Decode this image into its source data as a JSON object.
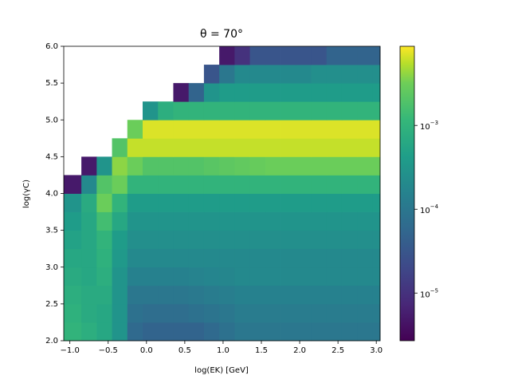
{
  "chart_data": {
    "type": "heatmap",
    "title": "θ = 70°",
    "x_label": "log(EK) [GeV]",
    "y_label": "log(γC)",
    "colormap": "viridis",
    "zscale": "log",
    "xlim": [
      -1.08,
      3.05
    ],
    "ylim": [
      2.0,
      6.0
    ],
    "zlim": [
      2.7e-06,
      0.0088
    ],
    "xticks": [
      {
        "value": -1.0,
        "label": "−1.0"
      },
      {
        "value": -0.5,
        "label": "−0.5"
      },
      {
        "value": 0.0,
        "label": "0.0"
      },
      {
        "value": 0.5,
        "label": "0.5"
      },
      {
        "value": 1.0,
        "label": "1.0"
      },
      {
        "value": 1.5,
        "label": "1.5"
      },
      {
        "value": 2.0,
        "label": "2.0"
      },
      {
        "value": 2.5,
        "label": "2.5"
      },
      {
        "value": 3.0,
        "label": "3.0"
      }
    ],
    "yticks": [
      {
        "value": 2.0,
        "label": "2.0"
      },
      {
        "value": 2.5,
        "label": "2.5"
      },
      {
        "value": 3.0,
        "label": "3.0"
      },
      {
        "value": 3.5,
        "label": "3.5"
      },
      {
        "value": 4.0,
        "label": "4.0"
      },
      {
        "value": 4.5,
        "label": "4.5"
      },
      {
        "value": 5.0,
        "label": "5.0"
      },
      {
        "value": 5.5,
        "label": "5.5"
      },
      {
        "value": 6.0,
        "label": "6.0"
      }
    ],
    "zticks": [
      {
        "value": 1e-05,
        "label": "10−5"
      },
      {
        "value": 0.0001,
        "label": "10−4"
      },
      {
        "value": 0.001,
        "label": "10−3"
      }
    ],
    "xbins": [
      -1.08,
      -0.85,
      -0.65,
      -0.45,
      -0.25,
      -0.05,
      0.15,
      0.35,
      0.55,
      0.75,
      0.95,
      1.15,
      1.35,
      1.55,
      1.75,
      1.95,
      2.15,
      2.35,
      2.55,
      2.75,
      2.95,
      3.05
    ],
    "ybins": [
      2.0,
      2.25,
      2.5,
      2.75,
      3.0,
      3.25,
      3.5,
      3.75,
      4.0,
      4.25,
      4.5,
      4.75,
      5.0,
      5.25,
      5.5,
      5.75,
      6.0
    ],
    "z": [
      [
        0.001,
        0.0008,
        0.0006,
        0.0003,
        6e-05,
        5e-05,
        5e-05,
        5e-05,
        5e-05,
        6e-05,
        8e-05,
        0.0001,
        0.0001,
        0.0001,
        0.0001,
        0.0001,
        0.0001,
        0.0001,
        0.0001,
        0.0001,
        0.0001
      ],
      [
        0.0009,
        0.0007,
        0.0006,
        0.0003,
        8e-05,
        7e-05,
        7e-05,
        7e-05,
        8e-05,
        9e-05,
        0.0001,
        0.00012,
        0.00012,
        0.00012,
        0.00012,
        0.00012,
        0.00012,
        0.00012,
        0.00012,
        0.00012,
        0.00012
      ],
      [
        0.0008,
        0.0007,
        0.0007,
        0.0003,
        0.0001,
        0.0001,
        0.0001,
        0.0001,
        0.00011,
        0.00012,
        0.00013,
        0.00015,
        0.00015,
        0.00015,
        0.00015,
        0.00015,
        0.00015,
        0.00015,
        0.00015,
        0.00015,
        0.00015
      ],
      [
        0.0007,
        0.0006,
        0.0008,
        0.0003,
        0.00015,
        0.00015,
        0.00015,
        0.00015,
        0.00016,
        0.00017,
        0.00018,
        0.0002,
        0.0002,
        0.0002,
        0.0002,
        0.0002,
        0.0002,
        0.0002,
        0.0002,
        0.0002,
        0.0002
      ],
      [
        0.0006,
        0.0006,
        0.0009,
        0.00035,
        0.0002,
        0.0002,
        0.0002,
        0.0002,
        0.0002,
        0.0002,
        0.0002,
        0.0002,
        0.0002,
        0.0002,
        0.0002,
        0.0002,
        0.0002,
        0.0002,
        0.0002,
        0.0002,
        0.0002
      ],
      [
        0.0005,
        0.0006,
        0.001,
        0.0004,
        0.00025,
        0.00025,
        0.00025,
        0.00025,
        0.00025,
        0.00025,
        0.00025,
        0.00025,
        0.00025,
        0.00025,
        0.00025,
        0.00025,
        0.00025,
        0.00025,
        0.00025,
        0.00025,
        0.00025
      ],
      [
        0.0004,
        0.0006,
        0.0015,
        0.0006,
        0.0003,
        0.0003,
        0.0003,
        0.0003,
        0.0003,
        0.0003,
        0.0003,
        0.0003,
        0.0003,
        0.0003,
        0.0003,
        0.0003,
        0.0003,
        0.0003,
        0.0003,
        0.0003,
        0.0003
      ],
      [
        0.0003,
        0.0007,
        0.003,
        0.001,
        0.0004,
        0.0004,
        0.0004,
        0.0004,
        0.0004,
        0.0004,
        0.0004,
        0.0004,
        0.0004,
        0.0004,
        0.0004,
        0.0004,
        0.0004,
        0.0004,
        0.0004,
        0.0004,
        0.0004
      ],
      [
        5e-06,
        0.0002,
        0.002,
        0.003,
        0.001,
        0.001,
        0.001,
        0.001,
        0.001,
        0.001,
        0.001,
        0.001,
        0.001,
        0.001,
        0.001,
        0.001,
        0.001,
        0.001,
        0.001,
        0.001,
        0.001
      ],
      [
        null,
        5e-06,
        0.0003,
        0.004,
        0.003,
        0.002,
        0.002,
        0.002,
        0.002,
        0.0022,
        0.0024,
        0.0026,
        0.0028,
        0.003,
        0.003,
        0.003,
        0.003,
        0.003,
        0.003,
        0.003,
        0.003
      ],
      [
        null,
        null,
        null,
        0.002,
        0.006,
        0.006,
        0.006,
        0.006,
        0.006,
        0.006,
        0.006,
        0.006,
        0.006,
        0.006,
        0.006,
        0.006,
        0.006,
        0.006,
        0.006,
        0.006,
        0.006
      ],
      [
        null,
        null,
        null,
        null,
        0.003,
        0.007,
        0.007,
        0.007,
        0.007,
        0.007,
        0.007,
        0.007,
        0.007,
        0.007,
        0.007,
        0.007,
        0.007,
        0.007,
        0.007,
        0.007,
        0.007
      ],
      [
        null,
        null,
        null,
        null,
        null,
        0.0003,
        0.0008,
        0.001,
        0.001,
        0.001,
        0.001,
        0.001,
        0.001,
        0.001,
        0.001,
        0.001,
        0.001,
        0.001,
        0.001,
        0.001,
        0.001
      ],
      [
        null,
        null,
        null,
        null,
        null,
        null,
        null,
        5e-06,
        5e-05,
        0.0003,
        0.0004,
        0.0004,
        0.0004,
        0.0004,
        0.0004,
        0.0004,
        0.0004,
        0.0004,
        0.0004,
        0.0004,
        0.0004
      ],
      [
        null,
        null,
        null,
        null,
        null,
        null,
        null,
        null,
        null,
        3e-05,
        0.0001,
        0.0002,
        0.0002,
        0.0002,
        0.0002,
        0.0002,
        0.00025,
        0.00025,
        0.00025,
        0.00025,
        0.00025
      ],
      [
        null,
        null,
        null,
        null,
        null,
        null,
        null,
        null,
        null,
        null,
        5e-06,
        1e-05,
        3e-05,
        3e-05,
        3e-05,
        3e-05,
        3e-05,
        5e-05,
        5e-05,
        5e-05,
        5e-05
      ]
    ]
  }
}
